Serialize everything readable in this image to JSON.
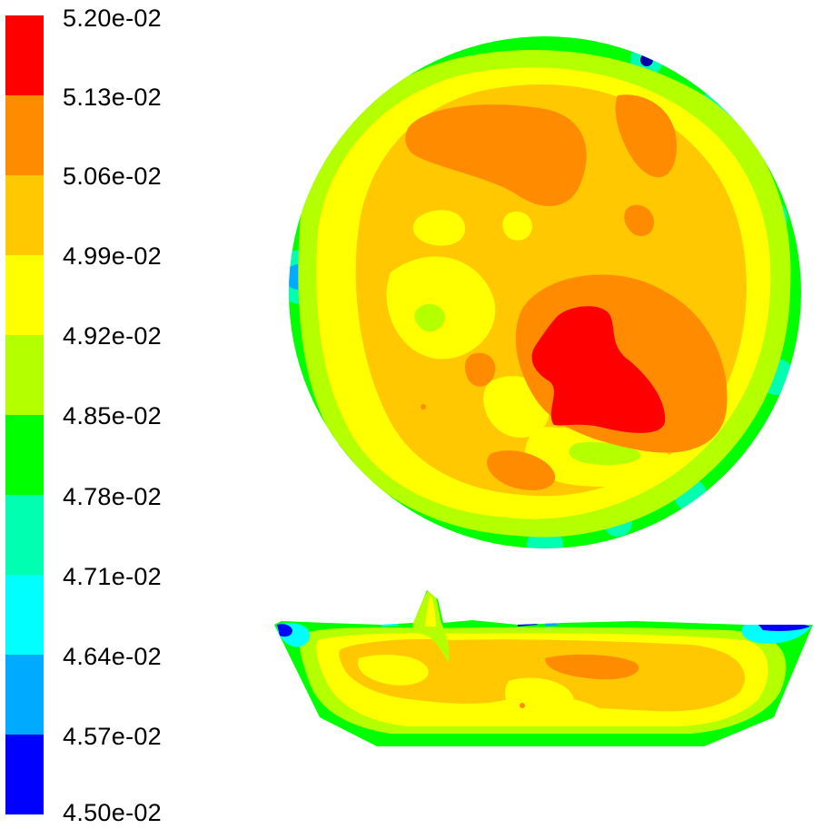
{
  "legend": {
    "labels": [
      "5.20e-02",
      "5.13e-02",
      "5.06e-02",
      "4.99e-02",
      "4.92e-02",
      "4.85e-02",
      "4.78e-02",
      "4.71e-02",
      "4.64e-02",
      "4.57e-02",
      "4.50e-02"
    ],
    "band_colors": [
      "#ff0000",
      "#ff8c00",
      "#ffc800",
      "#ffff00",
      "#b4ff00",
      "#00ff00",
      "#00ffb0",
      "#00ffff",
      "#00aaff",
      "#0000ff"
    ]
  },
  "views": {
    "top_view": "circular cross-section contour",
    "side_view": "vertical section contour"
  }
}
